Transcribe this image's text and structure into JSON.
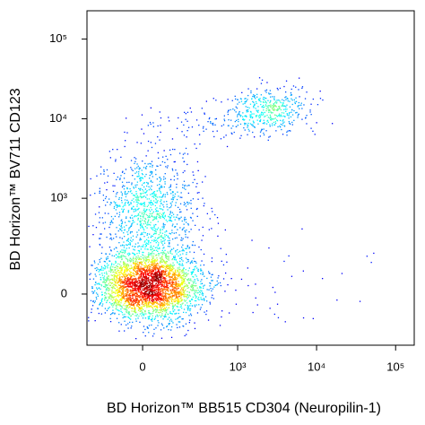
{
  "chart_data": {
    "type": "density-scatter",
    "x_label": "BD Horizon™ BB515 CD304 (Neuropilin-1)",
    "y_label": "BD Horizon™ BV711 CD123",
    "xscale": "biexponential",
    "yscale": "biexponential",
    "xlim": [
      -306,
      172000
    ],
    "ylim": [
      -262,
      227000
    ],
    "xticks": [
      0,
      {
        "value": 1000,
        "label": "10³"
      },
      {
        "value": 10000,
        "label": "10⁴"
      },
      {
        "value": 100000,
        "label": "10⁵"
      }
    ],
    "yticks": [
      0,
      {
        "value": 1000,
        "label": "10³"
      },
      {
        "value": 10000,
        "label": "10⁴"
      },
      {
        "value": 100000,
        "label": "10⁵"
      }
    ],
    "clusters": [
      {
        "x": 20,
        "y": 30,
        "xspan": [
          -179,
          448
        ],
        "yspan": [
          -96,
          200
        ],
        "n": 3000
      },
      {
        "x": 20,
        "y": 600,
        "xspan": [
          -150,
          400
        ],
        "yspan": [
          100,
          6300
        ],
        "n": 1200
      },
      {
        "x": 2500,
        "y": 13100,
        "xspan": [
          770,
          7100
        ],
        "yspan": [
          6300,
          23000
        ],
        "n": 400
      },
      {
        "x": 700,
        "y": 9000,
        "xspan": [
          50,
          8000
        ],
        "yspan": [
          5000,
          16000
        ],
        "n": 120
      },
      {
        "x": 3000,
        "y": 40,
        "xspan": [
          200,
          150000
        ],
        "yspan": [
          -150,
          300
        ],
        "n": 40
      }
    ]
  }
}
